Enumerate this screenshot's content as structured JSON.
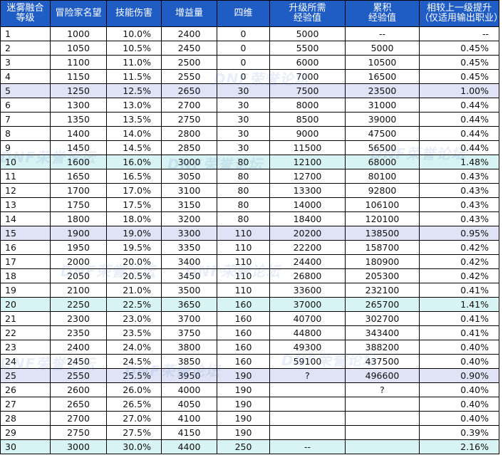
{
  "headers": [
    "迷雾融合\n等级",
    "冒险家名望",
    "技能伤害",
    "增益量",
    "四维",
    "升级所需\n经验值",
    "累积\n经验值",
    "相较上一级提升\n（仅适用输出职业）"
  ],
  "row_colors": {
    "normal": "#ffffff",
    "milestone_a": "#dfe3f5",
    "milestone_b": "#d8f3f3"
  },
  "watermark_text": "DNF荣誉论坛",
  "rows": [
    {
      "level": "1",
      "fame": "1000",
      "damage": "10.0%",
      "buff": "2400",
      "stat": "0",
      "exp": "5000",
      "cum_exp": "--",
      "gain": "--",
      "style": "normal"
    },
    {
      "level": "2",
      "fame": "1050",
      "damage": "10.5%",
      "buff": "2450",
      "stat": "0",
      "exp": "5500",
      "cum_exp": "5000",
      "gain": "0.45%",
      "style": "normal"
    },
    {
      "level": "3",
      "fame": "1100",
      "damage": "11.0%",
      "buff": "2500",
      "stat": "0",
      "exp": "6000",
      "cum_exp": "10500",
      "gain": "0.45%",
      "style": "normal"
    },
    {
      "level": "4",
      "fame": "1150",
      "damage": "11.5%",
      "buff": "2550",
      "stat": "0",
      "exp": "7000",
      "cum_exp": "16500",
      "gain": "0.45%",
      "style": "normal"
    },
    {
      "level": "5",
      "fame": "1250",
      "damage": "12.5%",
      "buff": "2650",
      "stat": "30",
      "exp": "7500",
      "cum_exp": "23500",
      "gain": "1.00%",
      "style": "milestone_a"
    },
    {
      "level": "6",
      "fame": "1300",
      "damage": "13.0%",
      "buff": "2700",
      "stat": "30",
      "exp": "8000",
      "cum_exp": "31000",
      "gain": "0.44%",
      "style": "normal"
    },
    {
      "level": "7",
      "fame": "1350",
      "damage": "13.5%",
      "buff": "2750",
      "stat": "30",
      "exp": "8500",
      "cum_exp": "39000",
      "gain": "0.44%",
      "style": "normal"
    },
    {
      "level": "8",
      "fame": "1400",
      "damage": "14.0%",
      "buff": "2800",
      "stat": "30",
      "exp": "9000",
      "cum_exp": "47500",
      "gain": "0.44%",
      "style": "normal"
    },
    {
      "level": "9",
      "fame": "1450",
      "damage": "14.5%",
      "buff": "2850",
      "stat": "30",
      "exp": "11500",
      "cum_exp": "56500",
      "gain": "0.44%",
      "style": "normal"
    },
    {
      "level": "10",
      "fame": "1600",
      "damage": "16.0%",
      "buff": "3000",
      "stat": "80",
      "exp": "12100",
      "cum_exp": "68000",
      "gain": "1.48%",
      "style": "milestone_b"
    },
    {
      "level": "11",
      "fame": "1650",
      "damage": "16.5%",
      "buff": "3050",
      "stat": "80",
      "exp": "12700",
      "cum_exp": "80100",
      "gain": "0.43%",
      "style": "normal"
    },
    {
      "level": "12",
      "fame": "1700",
      "damage": "17.0%",
      "buff": "3100",
      "stat": "80",
      "exp": "13300",
      "cum_exp": "92800",
      "gain": "0.43%",
      "style": "normal"
    },
    {
      "level": "13",
      "fame": "1750",
      "damage": "17.5%",
      "buff": "3150",
      "stat": "80",
      "exp": "14000",
      "cum_exp": "106100",
      "gain": "0.43%",
      "style": "normal"
    },
    {
      "level": "14",
      "fame": "1800",
      "damage": "18.0%",
      "buff": "3200",
      "stat": "80",
      "exp": "18400",
      "cum_exp": "120100",
      "gain": "0.43%",
      "style": "normal"
    },
    {
      "level": "15",
      "fame": "1900",
      "damage": "19.0%",
      "buff": "3300",
      "stat": "110",
      "exp": "20200",
      "cum_exp": "138500",
      "gain": "0.95%",
      "style": "milestone_a"
    },
    {
      "level": "16",
      "fame": "1950",
      "damage": "19.5%",
      "buff": "3350",
      "stat": "110",
      "exp": "22200",
      "cum_exp": "158700",
      "gain": "0.42%",
      "style": "normal"
    },
    {
      "level": "17",
      "fame": "2000",
      "damage": "20.0%",
      "buff": "3400",
      "stat": "110",
      "exp": "24400",
      "cum_exp": "180900",
      "gain": "0.42%",
      "style": "normal"
    },
    {
      "level": "18",
      "fame": "2050",
      "damage": "20.5%",
      "buff": "3450",
      "stat": "110",
      "exp": "26800",
      "cum_exp": "205300",
      "gain": "0.42%",
      "style": "normal"
    },
    {
      "level": "19",
      "fame": "2100",
      "damage": "21.0%",
      "buff": "3500",
      "stat": "110",
      "exp": "33600",
      "cum_exp": "232100",
      "gain": "0.41%",
      "style": "normal"
    },
    {
      "level": "20",
      "fame": "2250",
      "damage": "22.5%",
      "buff": "3650",
      "stat": "160",
      "exp": "37000",
      "cum_exp": "265700",
      "gain": "1.41%",
      "style": "milestone_b"
    },
    {
      "level": "21",
      "fame": "2300",
      "damage": "23.0%",
      "buff": "3700",
      "stat": "160",
      "exp": "40700",
      "cum_exp": "302700",
      "gain": "0.41%",
      "style": "normal"
    },
    {
      "level": "22",
      "fame": "2350",
      "damage": "23.5%",
      "buff": "3750",
      "stat": "160",
      "exp": "44800",
      "cum_exp": "343400",
      "gain": "0.41%",
      "style": "normal"
    },
    {
      "level": "23",
      "fame": "2400",
      "damage": "24.0%",
      "buff": "3800",
      "stat": "160",
      "exp": "49300",
      "cum_exp": "388200",
      "gain": "0.40%",
      "style": "normal"
    },
    {
      "level": "24",
      "fame": "2450",
      "damage": "24.5%",
      "buff": "3850",
      "stat": "160",
      "exp": "59100",
      "cum_exp": "437500",
      "gain": "0.40%",
      "style": "normal"
    },
    {
      "level": "25",
      "fame": "2550",
      "damage": "25.5%",
      "buff": "3950",
      "stat": "190",
      "exp": "?",
      "cum_exp": "496600",
      "gain": "0.90%",
      "style": "milestone_a"
    },
    {
      "level": "26",
      "fame": "2600",
      "damage": "26.0%",
      "buff": "4000",
      "stat": "190",
      "exp": "",
      "cum_exp": "?",
      "gain": "0.40%",
      "style": "normal"
    },
    {
      "level": "27",
      "fame": "2650",
      "damage": "26.5%",
      "buff": "4050",
      "stat": "190",
      "exp": "",
      "cum_exp": "",
      "gain": "0.40%",
      "style": "normal"
    },
    {
      "level": "28",
      "fame": "2700",
      "damage": "27.0%",
      "buff": "4100",
      "stat": "190",
      "exp": "",
      "cum_exp": "",
      "gain": "0.40%",
      "style": "normal"
    },
    {
      "level": "29",
      "fame": "2750",
      "damage": "27.5%",
      "buff": "4150",
      "stat": "190",
      "exp": "",
      "cum_exp": "",
      "gain": "0.39%",
      "style": "normal"
    },
    {
      "level": "30",
      "fame": "3000",
      "damage": "30.0%",
      "buff": "4400",
      "stat": "250",
      "exp": "--",
      "cum_exp": "",
      "gain": "2.16%",
      "style": "milestone_b"
    }
  ]
}
